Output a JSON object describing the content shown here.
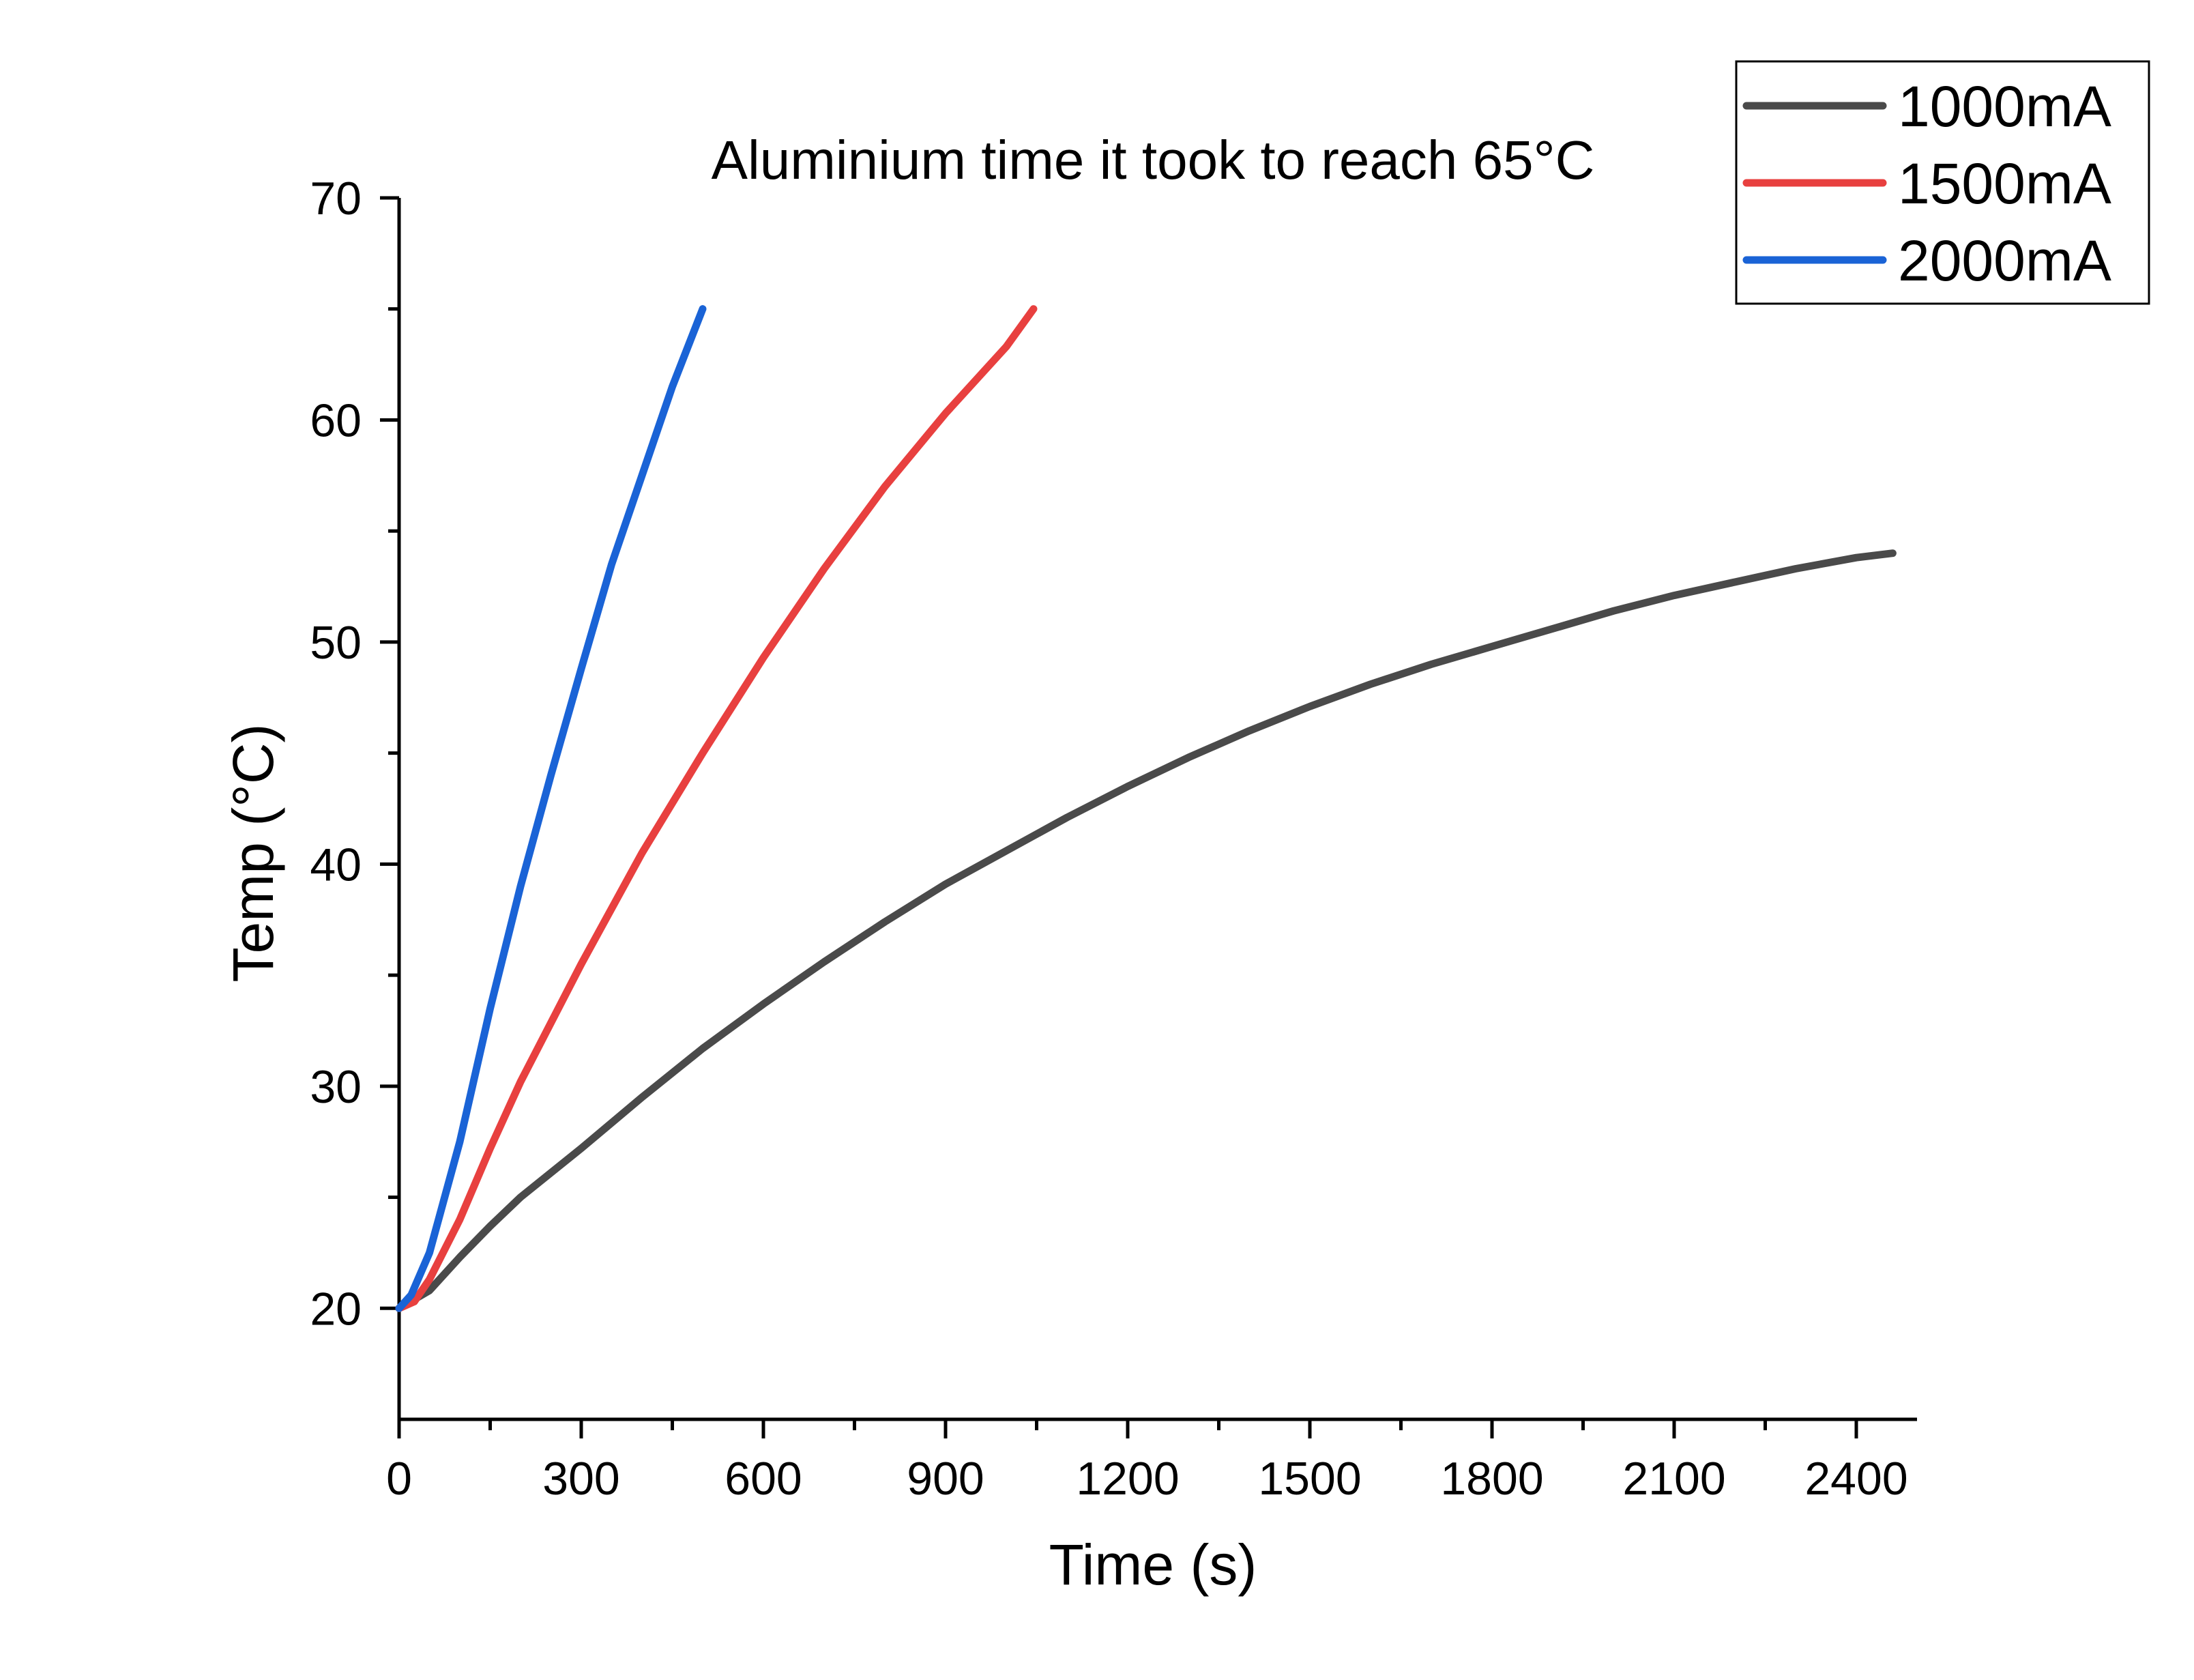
{
  "chart_data": {
    "type": "line",
    "title": "Aluminium time it took to reach 65°C",
    "xlabel": "Time (s)",
    "ylabel": "Temp (°C)",
    "xlim": [
      0,
      2500
    ],
    "ylim": [
      15,
      70
    ],
    "x_ticks": [
      0,
      300,
      600,
      900,
      1200,
      1500,
      1800,
      2100,
      2400
    ],
    "y_ticks": [
      20,
      30,
      40,
      50,
      60,
      70
    ],
    "legend_position": "top-right",
    "grid": false,
    "series": [
      {
        "name": "1000mA",
        "color": "#4a4a4a",
        "x": [
          0,
          50,
          100,
          150,
          200,
          300,
          400,
          500,
          600,
          700,
          800,
          900,
          1000,
          1100,
          1200,
          1300,
          1400,
          1500,
          1600,
          1700,
          1800,
          1900,
          2000,
          2100,
          2200,
          2300,
          2400,
          2460
        ],
        "y": [
          20,
          20.8,
          22.3,
          23.7,
          25.0,
          27.2,
          29.5,
          31.7,
          33.7,
          35.6,
          37.4,
          39.1,
          40.6,
          42.1,
          43.5,
          44.8,
          46.0,
          47.1,
          48.1,
          49.0,
          49.8,
          50.6,
          51.4,
          52.1,
          52.7,
          53.3,
          53.8,
          54.0
        ]
      },
      {
        "name": "1500mA",
        "color": "#e8403f",
        "x": [
          0,
          25,
          50,
          100,
          150,
          200,
          300,
          400,
          500,
          600,
          700,
          800,
          900,
          1000,
          1045
        ],
        "y": [
          20,
          20.3,
          21.3,
          24.0,
          27.2,
          30.2,
          35.5,
          40.5,
          45.0,
          49.3,
          53.3,
          57.0,
          60.3,
          63.3,
          65.0
        ]
      },
      {
        "name": "2000mA",
        "color": "#1a63d6",
        "x": [
          0,
          20,
          50,
          100,
          150,
          200,
          250,
          300,
          350,
          400,
          450,
          500
        ],
        "y": [
          20,
          20.6,
          22.5,
          27.5,
          33.5,
          39.0,
          44.0,
          48.8,
          53.5,
          57.5,
          61.5,
          65.0
        ]
      }
    ]
  }
}
